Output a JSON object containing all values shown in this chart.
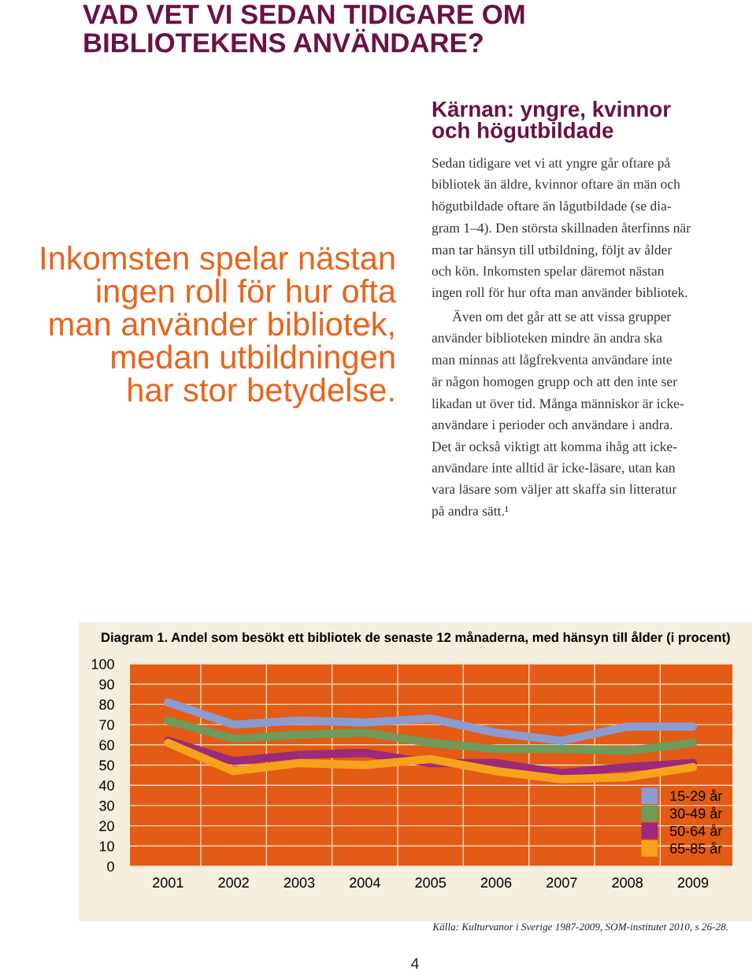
{
  "chart_data": {
    "type": "line",
    "title": "Diagram 1. Andel som besökt ett bibliotek de senaste 12 månaderna, med hänsyn till ålder (i procent)",
    "categories": [
      "2001",
      "2002",
      "2003",
      "2004",
      "2005",
      "2006",
      "2007",
      "2008",
      "2009"
    ],
    "series": [
      {
        "name": "15-29 år",
        "color": "#8c9bd0",
        "values": [
          81,
          70,
          72,
          71,
          73,
          66,
          62,
          69,
          69
        ]
      },
      {
        "name": "30-49 år",
        "color": "#6f9a5a",
        "values": [
          72,
          63,
          65,
          66,
          61,
          58,
          58,
          57,
          61
        ]
      },
      {
        "name": "50-64 år",
        "color": "#9b2a7a",
        "values": [
          62,
          52,
          55,
          56,
          51,
          51,
          46,
          49,
          51
        ]
      },
      {
        "name": "65-85 år",
        "color": "#f7a21b",
        "values": [
          61,
          47,
          51,
          50,
          53,
          47,
          43,
          44,
          49
        ]
      }
    ],
    "ylim": [
      0,
      100
    ],
    "yticks": [
      0,
      10,
      20,
      30,
      40,
      50,
      60,
      70,
      80,
      90,
      100
    ],
    "grid": true,
    "legend": "bottom right",
    "marker": "none",
    "line_style": "solid",
    "annotations": [
      "VAD VET VI SEDAN TIDIGARE OM\nBIBLIOTEKENS ANVÄNDARE?",
      "Inkomsten spelar nästan\ningen roll för hur ofta\nman använder bibliotek,\nmedan utbildningen\nhar stor betydelse.",
      "Kärnan: yngre, kvinnor\noch högutbildade",
      "Sedan tidigare vet vi att yngre går oftare på\nbibliotek än äldre, kvinnor oftare än män och\nhögutbildade oftare än lågutbildade (se dia-\ngram 1–4). Den största skillnaden återfinns när\nman tar hänsyn till utbildning, följt av ålder\noch kön. Inkomsten spelar däremot nästan\ningen roll för hur ofta man använder bibliotek.\n      Även om det går att se att vissa grupper\nanvänder biblioteken mindre än andra ska\nman minnas att lågfrekventa användare inte\när någon homogen grupp och att den inte ser\nlikadan ut över tid. Många människor är icke-\nanvändare i perioder och användare i andra.\nDet är också viktigt att komma ihåg att icke-\nanvändare inte alltid är icke-läsare, utan kan\nvara läsare som väljer att skaffa sin litteratur\npå andra sätt.¹",
      "Källa: Kulturvanor i Sverige 1987-2009, SOM-institutet 2010, s 26-28.",
      "4"
    ]
  }
}
